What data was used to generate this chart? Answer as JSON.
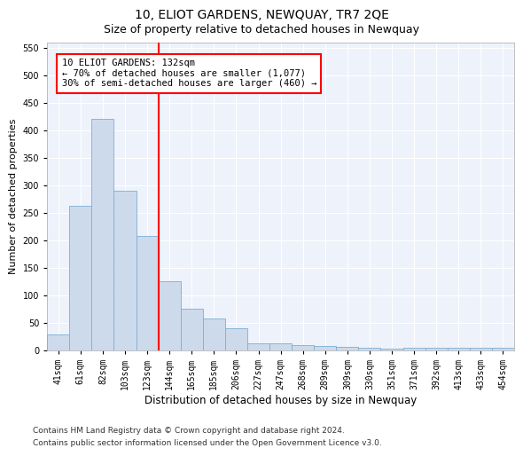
{
  "title": "10, ELIOT GARDENS, NEWQUAY, TR7 2QE",
  "subtitle": "Size of property relative to detached houses in Newquay",
  "xlabel": "Distribution of detached houses by size in Newquay",
  "ylabel": "Number of detached properties",
  "bar_color": "#cddaec",
  "bar_edge_color": "#7bafd4",
  "background_color": "#edf2fb",
  "grid_color": "white",
  "categories": [
    "41sqm",
    "61sqm",
    "82sqm",
    "103sqm",
    "123sqm",
    "144sqm",
    "165sqm",
    "185sqm",
    "206sqm",
    "227sqm",
    "247sqm",
    "268sqm",
    "289sqm",
    "309sqm",
    "330sqm",
    "351sqm",
    "371sqm",
    "392sqm",
    "413sqm",
    "433sqm",
    "454sqm"
  ],
  "values": [
    29,
    262,
    420,
    290,
    207,
    125,
    75,
    58,
    40,
    13,
    13,
    9,
    7,
    6,
    4,
    2,
    5,
    5,
    4,
    4,
    4
  ],
  "ylim": [
    0,
    560
  ],
  "yticks": [
    0,
    50,
    100,
    150,
    200,
    250,
    300,
    350,
    400,
    450,
    500,
    550
  ],
  "vline_index": 4.5,
  "vline_color": "red",
  "annotation_text": "10 ELIOT GARDENS: 132sqm\n← 70% of detached houses are smaller (1,077)\n30% of semi-detached houses are larger (460) →",
  "annotation_box_color": "white",
  "annotation_box_edgecolor": "red",
  "footer1": "Contains HM Land Registry data © Crown copyright and database right 2024.",
  "footer2": "Contains public sector information licensed under the Open Government Licence v3.0.",
  "title_fontsize": 10,
  "subtitle_fontsize": 9,
  "tick_fontsize": 7,
  "ylabel_fontsize": 8,
  "xlabel_fontsize": 8.5,
  "footer_fontsize": 6.5,
  "annotation_fontsize": 7.5
}
